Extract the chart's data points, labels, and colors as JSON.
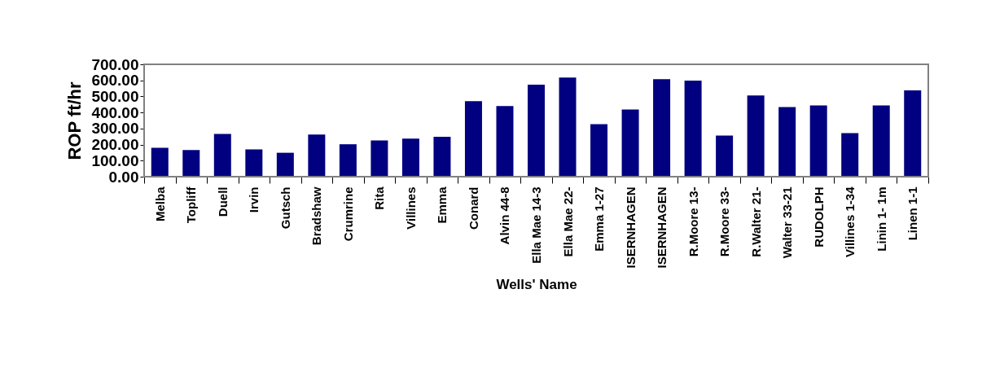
{
  "chart_data": {
    "type": "bar",
    "xlabel": "Wells' Name",
    "ylabel": "ROP ft/hr",
    "categories": [
      "Melba",
      "Topliff",
      "Duell",
      "Irvin",
      "Gutsch",
      "Bradshaw",
      "Crumrine",
      "Rita",
      "Villines",
      "Emma",
      "Conard",
      "Alvin 44-8",
      "Ella Mae 14-3",
      "Ella Mae 22-",
      "Emma 1-27",
      "ISERNHAGEN",
      "ISERNHAGEN",
      "R.Moore 13-",
      "R.Moore 33-",
      "R.Walter 21-",
      "Walter 33-21",
      "RUDOLPH",
      "Villines 1-34",
      "Linin 1- 1m",
      "Linen 1-1"
    ],
    "values": [
      180,
      166,
      266,
      170,
      149,
      262,
      202,
      226,
      237,
      248,
      471,
      440,
      573,
      618,
      327,
      418,
      608,
      598,
      256,
      506,
      434,
      444,
      272,
      444,
      538
    ],
    "color": "#000080",
    "ylim": [
      0,
      700
    ],
    "yticks": [
      {
        "value": 0,
        "label": "0.00"
      },
      {
        "value": 100,
        "label": "100.00"
      },
      {
        "value": 200,
        "label": "200.00"
      },
      {
        "value": 300,
        "label": "300.00"
      },
      {
        "value": 400,
        "label": "400.00"
      },
      {
        "value": 500,
        "label": "500.00"
      },
      {
        "value": 600,
        "label": "600.00"
      },
      {
        "value": 700,
        "label": "700.00"
      }
    ],
    "grid": false
  }
}
